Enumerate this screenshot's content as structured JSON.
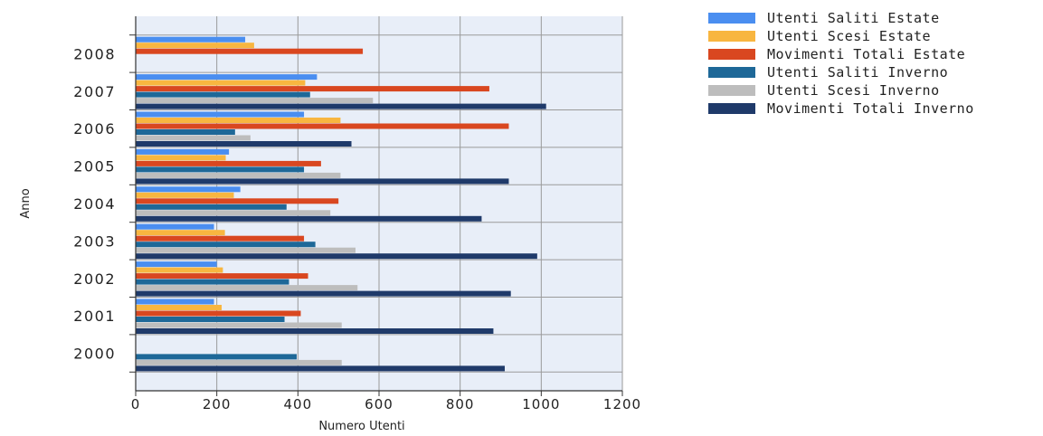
{
  "chart_data": {
    "type": "bar",
    "orientation": "horizontal",
    "xlabel": "Numero Utenti",
    "ylabel": "Anno",
    "xlim": [
      0,
      1200
    ],
    "xticks": [
      0,
      200,
      400,
      600,
      800,
      1000,
      1200
    ],
    "grid": true,
    "legend_position": "top-right",
    "categories": [
      "2008",
      "2007",
      "2006",
      "2005",
      "2004",
      "2003",
      "2002",
      "2001",
      "2000"
    ],
    "series": [
      {
        "name": "Utenti Saliti Estate",
        "color": "#4a8ef0",
        "values": [
          270,
          447,
          415,
          230,
          258,
          193,
          200,
          193,
          null
        ]
      },
      {
        "name": "Utenti Scesi Estate",
        "color": "#f8b640",
        "values": [
          292,
          418,
          505,
          222,
          242,
          220,
          215,
          212,
          null
        ]
      },
      {
        "name": "Movimenti Totali Estate",
        "color": "#d94720",
        "values": [
          560,
          872,
          920,
          457,
          500,
          415,
          425,
          407,
          null
        ]
      },
      {
        "name": "Utenti Saliti Inverno",
        "color": "#1e6898",
        "values": [
          null,
          430,
          245,
          415,
          372,
          443,
          378,
          367,
          397
        ]
      },
      {
        "name": "Utenti Scesi Inverno",
        "color": "#bdbdbd",
        "values": [
          null,
          585,
          283,
          505,
          480,
          542,
          547,
          508,
          508
        ]
      },
      {
        "name": "Movimenti Totali Inverno",
        "color": "#1f3a6a",
        "values": [
          null,
          1012,
          532,
          920,
          853,
          990,
          925,
          882,
          910
        ]
      }
    ]
  }
}
